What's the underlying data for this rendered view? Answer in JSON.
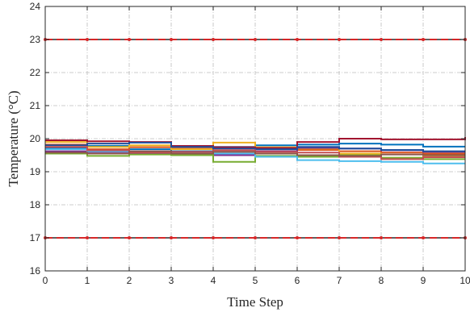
{
  "chart_data": {
    "type": "line",
    "step": true,
    "title": "",
    "xlabel": "Time Step",
    "ylabel": "Temperature (°C)",
    "xlim": [
      0,
      10
    ],
    "ylim": [
      16,
      24
    ],
    "xticks": [
      "0",
      "1",
      "2",
      "3",
      "4",
      "5",
      "6",
      "7",
      "8",
      "9",
      "10"
    ],
    "yticks": [
      "16",
      "17",
      "18",
      "19",
      "20",
      "21",
      "22",
      "23",
      "24"
    ],
    "grid": true,
    "x": [
      0,
      1,
      2,
      3,
      4,
      5,
      6,
      7,
      8,
      9,
      10
    ],
    "bounds": [
      {
        "value": 23,
        "color": "#d62728"
      },
      {
        "value": 17,
        "color": "#d62728"
      }
    ],
    "series": [
      {
        "color": "#0072bd",
        "values": [
          19.72,
          19.78,
          19.68,
          19.62,
          19.75,
          19.8,
          19.82,
          19.85,
          19.82,
          19.76,
          19.76
        ]
      },
      {
        "color": "#d95319",
        "values": [
          19.82,
          19.68,
          19.74,
          19.7,
          19.72,
          19.68,
          19.66,
          19.62,
          19.58,
          19.55,
          19.55
        ]
      },
      {
        "color": "#edb120",
        "values": [
          19.9,
          19.75,
          19.8,
          19.68,
          19.88,
          19.74,
          19.7,
          19.55,
          19.42,
          19.48,
          19.48
        ]
      },
      {
        "color": "#7e2f8e",
        "values": [
          19.62,
          19.6,
          19.55,
          19.52,
          19.5,
          19.62,
          19.72,
          19.7,
          19.65,
          19.6,
          19.6
        ]
      },
      {
        "color": "#77ac30",
        "values": [
          19.55,
          19.48,
          19.52,
          19.5,
          19.3,
          19.48,
          19.45,
          19.5,
          19.42,
          19.38,
          19.38
        ]
      },
      {
        "color": "#4dbeee",
        "values": [
          19.68,
          19.62,
          19.6,
          19.58,
          19.55,
          19.45,
          19.35,
          19.32,
          19.3,
          19.25,
          19.25
        ]
      },
      {
        "color": "#a2142f",
        "values": [
          19.95,
          19.92,
          19.9,
          19.78,
          19.74,
          19.72,
          19.9,
          20.0,
          19.98,
          19.98,
          20.05
        ]
      },
      {
        "color": "#1f4e9c",
        "values": [
          19.8,
          19.85,
          19.88,
          19.75,
          19.7,
          19.68,
          19.75,
          19.7,
          19.66,
          19.62,
          19.62
        ]
      },
      {
        "color": "#c44e52",
        "values": [
          19.75,
          19.65,
          19.58,
          19.6,
          19.65,
          19.6,
          19.58,
          19.45,
          19.38,
          19.44,
          19.44
        ]
      },
      {
        "color": "#8c564b",
        "values": [
          19.58,
          19.55,
          19.62,
          19.55,
          19.6,
          19.55,
          19.5,
          19.48,
          19.52,
          19.5,
          19.5
        ]
      }
    ]
  }
}
